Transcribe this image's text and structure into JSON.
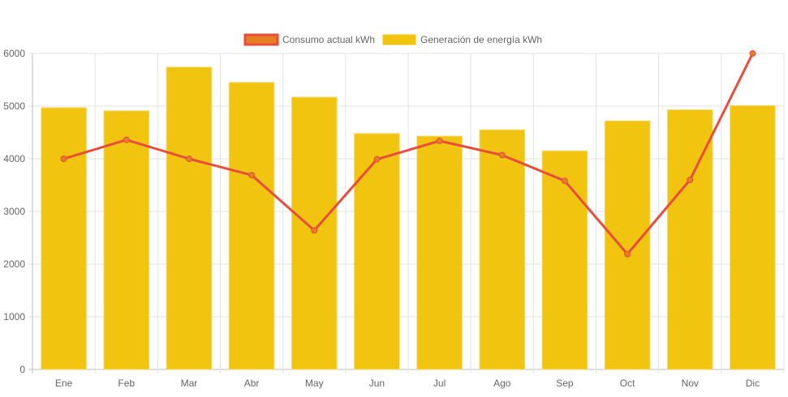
{
  "chart_data": {
    "type": "bar",
    "categories": [
      "Ene",
      "Feb",
      "Mar",
      "Abr",
      "May",
      "Jun",
      "Jul",
      "Ago",
      "Sep",
      "Oct",
      "Nov",
      "Dic"
    ],
    "series": [
      {
        "name": "Consumo actual kWh",
        "type": "line",
        "color": "#e74c3c",
        "point_color": "#e67e22",
        "values": [
          4000,
          4360,
          4000,
          3690,
          2640,
          3990,
          4340,
          4070,
          3580,
          2190,
          3600,
          6000
        ]
      },
      {
        "name": "Generación de energía kWh",
        "type": "bar",
        "color": "#f1c40f",
        "values": [
          4970,
          4910,
          5740,
          5450,
          5170,
          4480,
          4430,
          4550,
          4150,
          4720,
          4930,
          5010
        ]
      }
    ],
    "yticks": [
      0,
      1000,
      2000,
      3000,
      4000,
      5000,
      6000
    ],
    "ylim": [
      0,
      6000
    ],
    "grid": true,
    "legend": "top"
  }
}
